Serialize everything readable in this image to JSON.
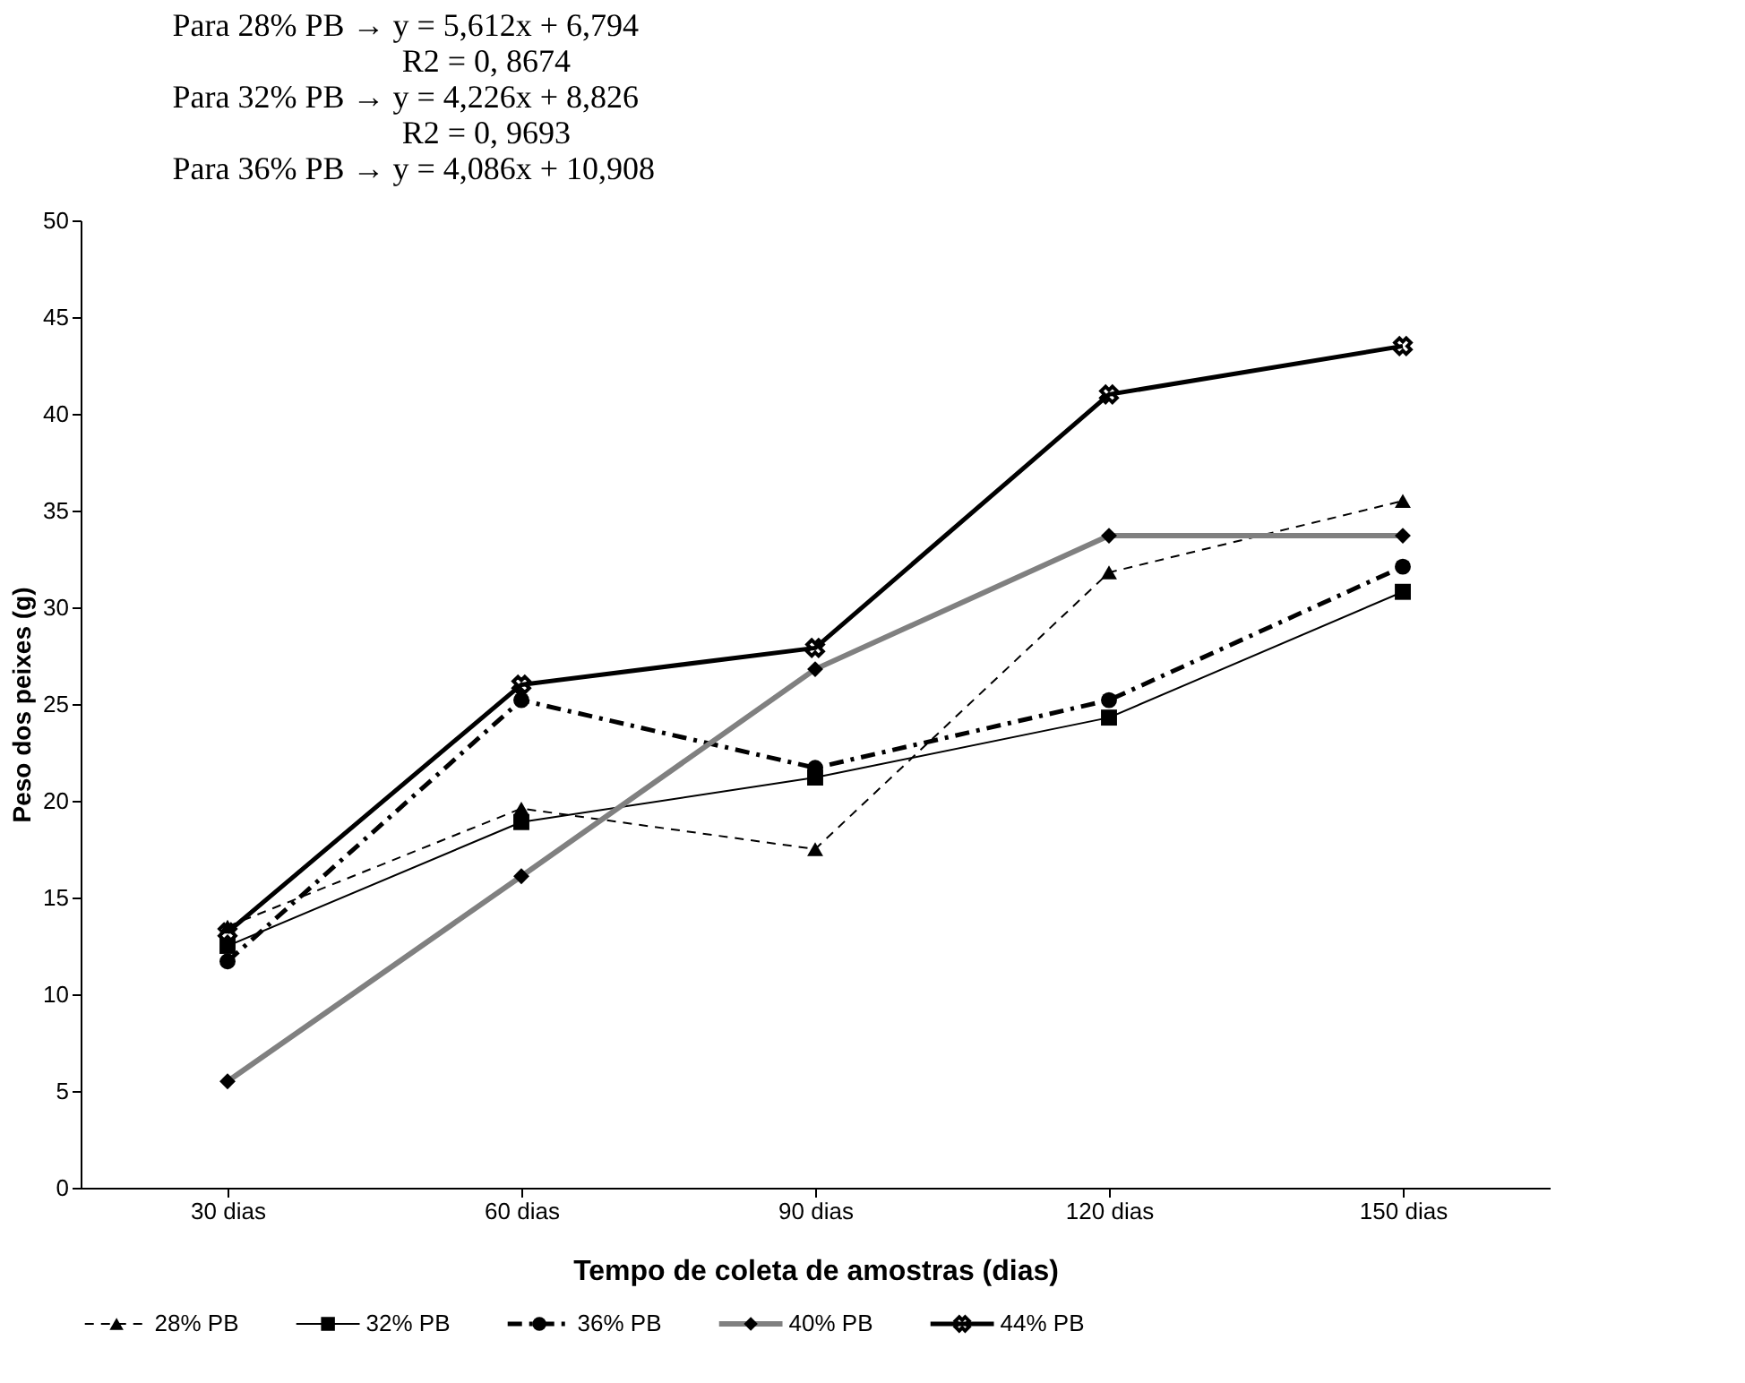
{
  "chart_data": {
    "type": "line",
    "annotations": [
      "Para 28% PB → y = 5,612x + 6,794",
      "R2 = 0, 8674",
      "Para 32% PB → y = 4,226x + 8,826",
      "R2 = 0, 9693",
      "Para 36% PB → y = 4,086x + 10,908"
    ],
    "xlabel": "Tempo de coleta de amostras (dias)",
    "ylabel": "Peso dos peixes (g)",
    "categories": [
      "30 dias",
      "60 dias",
      "90 dias",
      "120 dias",
      "150 dias"
    ],
    "ylim": [
      0,
      50
    ],
    "yticks": [
      0,
      5,
      10,
      15,
      20,
      25,
      30,
      35,
      40,
      45,
      50
    ],
    "grid": false,
    "legend": "bottom",
    "series": [
      {
        "name": "28% PB",
        "color": "#000000",
        "marker": "triangle",
        "line_style": "dashed",
        "values": [
          13.5,
          19.6,
          17.5,
          31.8,
          35.5
        ]
      },
      {
        "name": "32% PB",
        "color": "#000000",
        "marker": "square",
        "line_style": "solid",
        "values": [
          12.5,
          18.9,
          21.2,
          24.3,
          30.8
        ]
      },
      {
        "name": "36% PB",
        "color": "#000000",
        "marker": "circle",
        "line_style": "dashed",
        "values": [
          11.7,
          25.2,
          21.7,
          25.2,
          32.1
        ]
      },
      {
        "name": "40% PB",
        "color": "#808080",
        "marker": "diamond",
        "line_style": "solid",
        "values": [
          5.5,
          16.1,
          26.8,
          33.7,
          33.7
        ]
      },
      {
        "name": "44% PB",
        "color": "#000000",
        "marker": "cross",
        "line_style": "solid",
        "values": [
          13.2,
          26.0,
          27.9,
          41.0,
          43.5
        ]
      }
    ]
  }
}
